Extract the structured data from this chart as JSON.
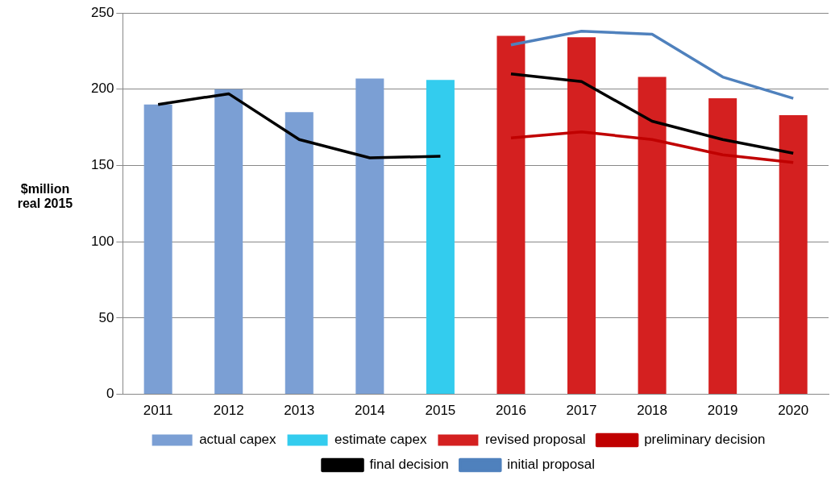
{
  "chart_data": {
    "type": "bar",
    "ylabel": "$million real 2015",
    "categories": [
      "2011",
      "2012",
      "2013",
      "2014",
      "2015",
      "2016",
      "2017",
      "2018",
      "2019",
      "2020"
    ],
    "series": [
      {
        "name": "actual capex",
        "color": "#7b9fd4",
        "values": [
          190,
          200,
          185,
          207,
          null,
          null,
          null,
          null,
          null,
          null
        ]
      },
      {
        "name": "estimate capex",
        "color": "#33ccee",
        "values": [
          null,
          null,
          null,
          null,
          206,
          null,
          null,
          null,
          null,
          null
        ]
      },
      {
        "name": "revised proposal",
        "color": "#d42020",
        "values": [
          null,
          null,
          null,
          null,
          null,
          235,
          234,
          208,
          194,
          183
        ]
      },
      {
        "name": "preliminary decision",
        "type": "line",
        "color": "#c00000",
        "values": [
          null,
          null,
          null,
          null,
          null,
          168,
          172,
          167,
          157,
          152
        ]
      },
      {
        "name": "final decision",
        "type": "line",
        "color": "#000000",
        "values": [
          190,
          197,
          167,
          155,
          156,
          null,
          null,
          null,
          null,
          null
        ]
      },
      {
        "type": "line",
        "color": "#000000",
        "values": [
          null,
          null,
          null,
          null,
          null,
          210,
          205,
          179,
          167,
          158
        ]
      },
      {
        "name": "initial proposal",
        "type": "line",
        "color": "#4f81bd",
        "values": [
          null,
          null,
          null,
          null,
          null,
          229,
          238,
          236,
          208,
          194
        ]
      }
    ],
    "ylim": [
      0,
      250
    ],
    "yticks": [
      0,
      50,
      100,
      150,
      200,
      250
    ],
    "grid": "y",
    "legend": "bottom",
    "marker": "none",
    "line_style": "solid"
  }
}
